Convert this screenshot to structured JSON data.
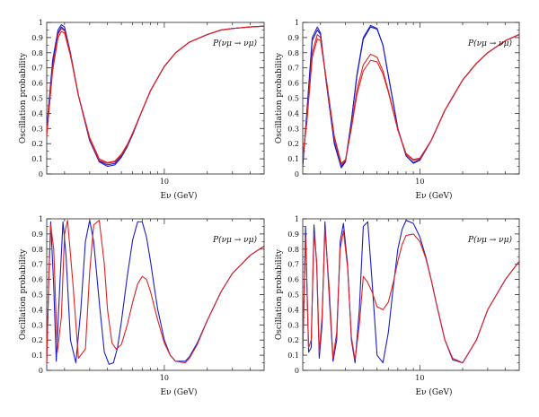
{
  "colors": {
    "normal_ordering": "#1d1dc8",
    "inverted_ordering": "#e02222",
    "axis": "#222222"
  },
  "chart_data": [
    {
      "type": "line",
      "panel": "top-left",
      "xlabel": "Eν (GeV)",
      "ylabel": "Oscillation probability",
      "xscale": "log",
      "xlim": [
        1.5,
        50
      ],
      "ylim": [
        0,
        1
      ],
      "xticks": [
        10
      ],
      "xtick_labels": [
        "10"
      ],
      "yticks": [
        0,
        0.1,
        0.2,
        0.3,
        0.4,
        0.5,
        0.6,
        0.7,
        0.8,
        0.9,
        1
      ],
      "ytick_labels": [
        "0",
        "0.1",
        "0.2",
        "0.3",
        "0.4",
        "0.5",
        "0.6",
        "0.7",
        "0.8",
        "0.9",
        "1"
      ],
      "legend": "P(νμ → νμ)",
      "legend_position": "top-right",
      "grid": false,
      "series": [
        {
          "color": "#1d1dc8",
          "x": [
            1.5,
            1.65,
            1.8,
            1.9,
            2.0,
            2.2,
            2.5,
            3.0,
            3.5,
            4.0,
            4.5,
            5.0,
            5.5,
            6.0,
            7.0,
            8.0,
            10,
            12,
            15,
            20,
            25,
            30,
            40,
            50
          ],
          "y": [
            0.3,
            0.75,
            0.95,
            0.985,
            0.97,
            0.8,
            0.52,
            0.22,
            0.08,
            0.05,
            0.06,
            0.11,
            0.18,
            0.26,
            0.42,
            0.55,
            0.71,
            0.8,
            0.87,
            0.92,
            0.95,
            0.96,
            0.97,
            0.975
          ]
        },
        {
          "color": "#1d1dc8",
          "x": [
            1.5,
            1.65,
            1.8,
            1.9,
            2.0,
            2.2,
            2.5,
            3.0,
            3.5,
            4.0,
            4.5,
            5.0,
            5.5,
            6.0,
            7.0,
            8.0,
            10,
            12,
            15,
            20,
            25,
            30,
            40,
            50
          ],
          "y": [
            0.28,
            0.72,
            0.93,
            0.97,
            0.95,
            0.79,
            0.52,
            0.22,
            0.085,
            0.06,
            0.07,
            0.12,
            0.185,
            0.265,
            0.42,
            0.55,
            0.71,
            0.8,
            0.87,
            0.92,
            0.95,
            0.96,
            0.97,
            0.975
          ]
        },
        {
          "color": "#e02222",
          "x": [
            1.5,
            1.65,
            1.8,
            1.9,
            2.0,
            2.2,
            2.5,
            3.0,
            3.5,
            4.0,
            4.5,
            5.0,
            5.5,
            6.0,
            7.0,
            8.0,
            10,
            12,
            15,
            20,
            25,
            30,
            40,
            50
          ],
          "y": [
            0.25,
            0.68,
            0.9,
            0.94,
            0.93,
            0.78,
            0.52,
            0.24,
            0.1,
            0.075,
            0.085,
            0.13,
            0.195,
            0.27,
            0.42,
            0.55,
            0.71,
            0.8,
            0.87,
            0.92,
            0.95,
            0.96,
            0.97,
            0.975
          ]
        },
        {
          "color": "#e02222",
          "x": [
            1.5,
            1.65,
            1.8,
            1.9,
            2.0,
            2.2,
            2.5,
            3.0,
            3.5,
            4.0,
            4.5,
            5.0,
            5.5,
            6.0,
            7.0,
            8.0,
            10,
            12,
            15,
            20,
            25,
            30,
            40,
            50
          ],
          "y": [
            0.27,
            0.7,
            0.92,
            0.96,
            0.945,
            0.79,
            0.52,
            0.23,
            0.09,
            0.07,
            0.08,
            0.125,
            0.19,
            0.27,
            0.42,
            0.55,
            0.71,
            0.8,
            0.87,
            0.92,
            0.95,
            0.96,
            0.97,
            0.975
          ]
        }
      ]
    },
    {
      "type": "line",
      "panel": "top-right",
      "xlabel": "Eν (GeV)",
      "ylabel": "Oscillation probability",
      "xscale": "log",
      "xlim": [
        1.5,
        50
      ],
      "ylim": [
        0,
        1
      ],
      "xticks": [
        10
      ],
      "xtick_labels": [
        "10"
      ],
      "yticks": [
        0,
        0.1,
        0.2,
        0.3,
        0.4,
        0.5,
        0.6,
        0.7,
        0.8,
        0.9,
        1
      ],
      "ytick_labels": [
        "0",
        "0.1",
        "0.2",
        "0.3",
        "0.4",
        "0.5",
        "0.6",
        "0.7",
        "0.8",
        "0.9",
        "1"
      ],
      "legend": "P(νμ → νμ)",
      "legend_position": "top-right",
      "grid": false,
      "series": [
        {
          "color": "#1d1dc8",
          "x": [
            1.5,
            1.6,
            1.75,
            1.9,
            2.0,
            2.2,
            2.5,
            2.8,
            3.0,
            3.3,
            3.6,
            4.0,
            4.5,
            5.0,
            5.5,
            6.0,
            7.0,
            8.0,
            9.0,
            10,
            12,
            15,
            20,
            25,
            30,
            40,
            50
          ],
          "y": [
            0.05,
            0.4,
            0.9,
            0.97,
            0.93,
            0.6,
            0.2,
            0.04,
            0.08,
            0.35,
            0.65,
            0.9,
            0.98,
            0.96,
            0.85,
            0.65,
            0.3,
            0.12,
            0.07,
            0.09,
            0.22,
            0.42,
            0.62,
            0.73,
            0.8,
            0.88,
            0.92
          ]
        },
        {
          "color": "#1d1dc8",
          "x": [
            1.5,
            1.6,
            1.75,
            1.9,
            2.0,
            2.2,
            2.5,
            2.8,
            3.0,
            3.3,
            3.6,
            4.0,
            4.5,
            5.0,
            5.5,
            6.0,
            7.0,
            8.0,
            9.0,
            10,
            12,
            15,
            20,
            25,
            30,
            40,
            50
          ],
          "y": [
            0.06,
            0.38,
            0.88,
            0.95,
            0.92,
            0.6,
            0.21,
            0.05,
            0.085,
            0.35,
            0.64,
            0.89,
            0.97,
            0.955,
            0.85,
            0.65,
            0.3,
            0.12,
            0.075,
            0.095,
            0.22,
            0.42,
            0.62,
            0.73,
            0.8,
            0.88,
            0.92
          ]
        },
        {
          "color": "#e02222",
          "x": [
            1.5,
            1.6,
            1.75,
            1.9,
            2.0,
            2.2,
            2.5,
            2.8,
            3.0,
            3.3,
            3.6,
            4.0,
            4.5,
            5.0,
            5.5,
            6.0,
            7.0,
            8.0,
            9.0,
            10,
            12,
            15,
            20,
            25,
            30,
            40,
            50
          ],
          "y": [
            0.1,
            0.35,
            0.8,
            0.92,
            0.9,
            0.62,
            0.24,
            0.06,
            0.09,
            0.31,
            0.55,
            0.72,
            0.79,
            0.77,
            0.68,
            0.55,
            0.29,
            0.13,
            0.09,
            0.1,
            0.22,
            0.42,
            0.62,
            0.73,
            0.8,
            0.88,
            0.92
          ]
        },
        {
          "color": "#e02222",
          "x": [
            1.5,
            1.6,
            1.75,
            1.9,
            2.0,
            2.2,
            2.5,
            2.8,
            3.0,
            3.3,
            3.6,
            4.0,
            4.5,
            5.0,
            5.5,
            6.0,
            7.0,
            8.0,
            9.0,
            10,
            12,
            15,
            20,
            25,
            30,
            40,
            50
          ],
          "y": [
            0.12,
            0.33,
            0.77,
            0.89,
            0.88,
            0.62,
            0.25,
            0.07,
            0.095,
            0.3,
            0.52,
            0.68,
            0.75,
            0.74,
            0.66,
            0.54,
            0.29,
            0.135,
            0.095,
            0.105,
            0.22,
            0.42,
            0.62,
            0.73,
            0.8,
            0.88,
            0.92
          ]
        }
      ]
    },
    {
      "type": "line",
      "panel": "bottom-left",
      "xlabel": "Eν (GeV)",
      "ylabel": "Oscillation probability",
      "xscale": "log",
      "xlim": [
        1.5,
        50
      ],
      "ylim": [
        0,
        1
      ],
      "xticks": [
        10
      ],
      "xtick_labels": [
        "10"
      ],
      "yticks": [
        0,
        0.1,
        0.2,
        0.3,
        0.4,
        0.5,
        0.6,
        0.7,
        0.8,
        0.9,
        1
      ],
      "ytick_labels": [
        "0",
        "0.1",
        "0.2",
        "0.3",
        "0.4",
        "0.5",
        "0.6",
        "0.7",
        "0.8",
        "0.9",
        "1"
      ],
      "legend": "P(νμ → νμ)",
      "legend_position": "top-right",
      "grid": false,
      "series": [
        {
          "color": "#1d1dc8",
          "x": [
            1.5,
            1.55,
            1.6,
            1.68,
            1.75,
            1.85,
            1.95,
            2.05,
            2.2,
            2.4,
            2.6,
            2.8,
            3.0,
            3.2,
            3.5,
            3.8,
            4.1,
            4.4,
            4.7,
            5.0,
            5.5,
            6.0,
            6.5,
            7.0,
            7.5,
            8.0,
            8.5,
            9.0,
            10,
            11,
            12,
            14,
            15,
            17,
            20,
            25,
            30,
            40,
            50
          ],
          "y": [
            0.05,
            0.6,
            0.98,
            0.55,
            0.06,
            0.55,
            0.98,
            0.75,
            0.2,
            0.05,
            0.4,
            0.85,
            0.99,
            0.85,
            0.45,
            0.12,
            0.04,
            0.05,
            0.15,
            0.32,
            0.62,
            0.86,
            0.98,
            0.98,
            0.88,
            0.72,
            0.55,
            0.4,
            0.2,
            0.1,
            0.06,
            0.06,
            0.09,
            0.18,
            0.33,
            0.52,
            0.64,
            0.76,
            0.82
          ]
        },
        {
          "color": "#e02222",
          "x": [
            1.5,
            1.55,
            1.6,
            1.68,
            1.78,
            1.9,
            2.0,
            2.1,
            2.3,
            2.5,
            2.8,
            3.0,
            3.2,
            3.5,
            3.8,
            4.0,
            4.3,
            4.6,
            5.0,
            5.5,
            6.0,
            6.5,
            7.0,
            7.5,
            8.0,
            8.5,
            9.0,
            10,
            11,
            12,
            14,
            15,
            17,
            20,
            25,
            30,
            40,
            50
          ],
          "y": [
            0.05,
            0.6,
            0.96,
            0.8,
            0.12,
            0.35,
            0.9,
            0.99,
            0.55,
            0.08,
            0.14,
            0.65,
            0.96,
            0.99,
            0.7,
            0.4,
            0.18,
            0.14,
            0.17,
            0.3,
            0.45,
            0.57,
            0.62,
            0.6,
            0.52,
            0.42,
            0.33,
            0.18,
            0.1,
            0.06,
            0.05,
            0.08,
            0.17,
            0.33,
            0.52,
            0.64,
            0.76,
            0.82
          ]
        }
      ]
    },
    {
      "type": "line",
      "panel": "bottom-right",
      "xlabel": "Eν (GeV)",
      "ylabel": "Oscillation probability",
      "xscale": "log",
      "xlim": [
        1.5,
        50
      ],
      "ylim": [
        0,
        1
      ],
      "xticks": [
        10
      ],
      "xtick_labels": [
        "10"
      ],
      "yticks": [
        0,
        0.1,
        0.2,
        0.3,
        0.4,
        0.5,
        0.6,
        0.7,
        0.8,
        0.9,
        1
      ],
      "ytick_labels": [
        "0",
        "0.1",
        "0.2",
        "0.3",
        "0.4",
        "0.5",
        "0.6",
        "0.7",
        "0.8",
        "0.9",
        "1"
      ],
      "legend": "P(νμ → νμ)",
      "legend_position": "top-right",
      "grid": false,
      "series": [
        {
          "color": "#1d1dc8",
          "x": [
            1.5,
            1.57,
            1.65,
            1.72,
            1.8,
            1.88,
            1.96,
            2.05,
            2.15,
            2.3,
            2.45,
            2.6,
            2.75,
            2.9,
            3.1,
            3.3,
            3.5,
            3.75,
            4.0,
            4.3,
            4.6,
            5.0,
            5.5,
            6.0,
            6.5,
            7.0,
            7.5,
            8.0,
            9.0,
            10,
            11,
            12,
            13,
            15,
            17,
            20,
            25,
            30,
            40,
            50
          ],
          "y": [
            0.1,
            0.95,
            0.12,
            0.15,
            0.96,
            0.7,
            0.08,
            0.3,
            0.98,
            0.5,
            0.06,
            0.2,
            0.85,
            0.97,
            0.7,
            0.2,
            0.05,
            0.4,
            0.95,
            0.98,
            0.6,
            0.1,
            0.05,
            0.25,
            0.55,
            0.8,
            0.93,
            0.99,
            0.97,
            0.88,
            0.75,
            0.6,
            0.45,
            0.2,
            0.07,
            0.05,
            0.2,
            0.4,
            0.6,
            0.72
          ]
        },
        {
          "color": "#e02222",
          "x": [
            1.5,
            1.57,
            1.65,
            1.72,
            1.8,
            1.88,
            1.96,
            2.05,
            2.15,
            2.3,
            2.45,
            2.6,
            2.75,
            2.9,
            3.1,
            3.3,
            3.5,
            3.75,
            4.0,
            4.3,
            4.6,
            5.0,
            5.5,
            6.0,
            6.5,
            7.0,
            7.5,
            8.0,
            9.0,
            10,
            11,
            12,
            13,
            15,
            17,
            20,
            25,
            30,
            40,
            50
          ],
          "y": [
            0.12,
            0.88,
            0.15,
            0.2,
            0.9,
            0.72,
            0.12,
            0.35,
            0.93,
            0.55,
            0.08,
            0.25,
            0.8,
            0.92,
            0.68,
            0.22,
            0.07,
            0.3,
            0.62,
            0.58,
            0.52,
            0.42,
            0.4,
            0.45,
            0.58,
            0.72,
            0.83,
            0.89,
            0.9,
            0.85,
            0.74,
            0.6,
            0.45,
            0.2,
            0.08,
            0.05,
            0.2,
            0.4,
            0.6,
            0.72
          ]
        }
      ]
    }
  ]
}
